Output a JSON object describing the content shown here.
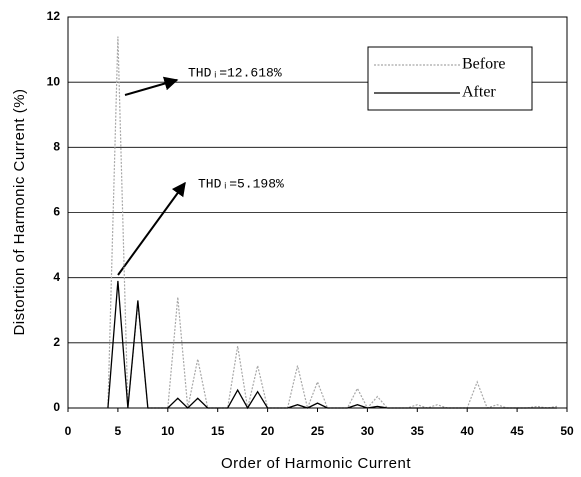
{
  "chart_data": {
    "type": "line",
    "xlabel": "Order of Harmonic Current",
    "ylabel": "Distortion of Harmonic Current (%)",
    "x": [
      4,
      5,
      6,
      7,
      8,
      9,
      10,
      11,
      12,
      13,
      14,
      15,
      16,
      17,
      18,
      19,
      20,
      21,
      22,
      23,
      24,
      25,
      26,
      27,
      28,
      29,
      30,
      31,
      32,
      33,
      34,
      35,
      36,
      37,
      38,
      39,
      40,
      41,
      42,
      43,
      44,
      45,
      46,
      47,
      48,
      49
    ],
    "series": [
      {
        "name": "Before",
        "color": "#a8a8a8",
        "dash": true,
        "values": [
          0,
          11.4,
          0,
          3.2,
          0,
          0,
          0,
          3.4,
          0,
          1.5,
          0,
          0,
          0,
          1.9,
          0,
          1.3,
          0,
          0,
          0,
          1.3,
          0,
          0.8,
          0,
          0,
          0,
          0.6,
          0,
          0.35,
          0,
          0,
          0,
          0.1,
          0,
          0.1,
          0,
          0,
          0,
          0.8,
          0,
          0.1,
          0,
          0,
          0,
          0.05,
          0,
          0.05
        ]
      },
      {
        "name": "After",
        "color": "#000000",
        "dash": false,
        "values": [
          0,
          3.9,
          0,
          3.3,
          0,
          0,
          0,
          0.3,
          0,
          0.3,
          0,
          0,
          0,
          0.55,
          0,
          0.5,
          0,
          0,
          0,
          0.1,
          0,
          0.15,
          0,
          0,
          0,
          0.1,
          0,
          0.05,
          0,
          0,
          0,
          0,
          0,
          0,
          0,
          0,
          0,
          0,
          0,
          0,
          0,
          0,
          0,
          0,
          0,
          0
        ]
      }
    ],
    "annotations": [
      "THDᵢ=12.618%",
      "THDᵢ=5.198%"
    ],
    "xlim": [
      0,
      50
    ],
    "xticks": [
      0,
      5,
      10,
      15,
      20,
      25,
      30,
      35,
      40,
      45,
      50
    ],
    "ylim": [
      0,
      12
    ],
    "yticks": [
      0,
      2,
      4,
      6,
      8,
      10,
      12
    ],
    "grid": true,
    "legend": "upper right"
  }
}
